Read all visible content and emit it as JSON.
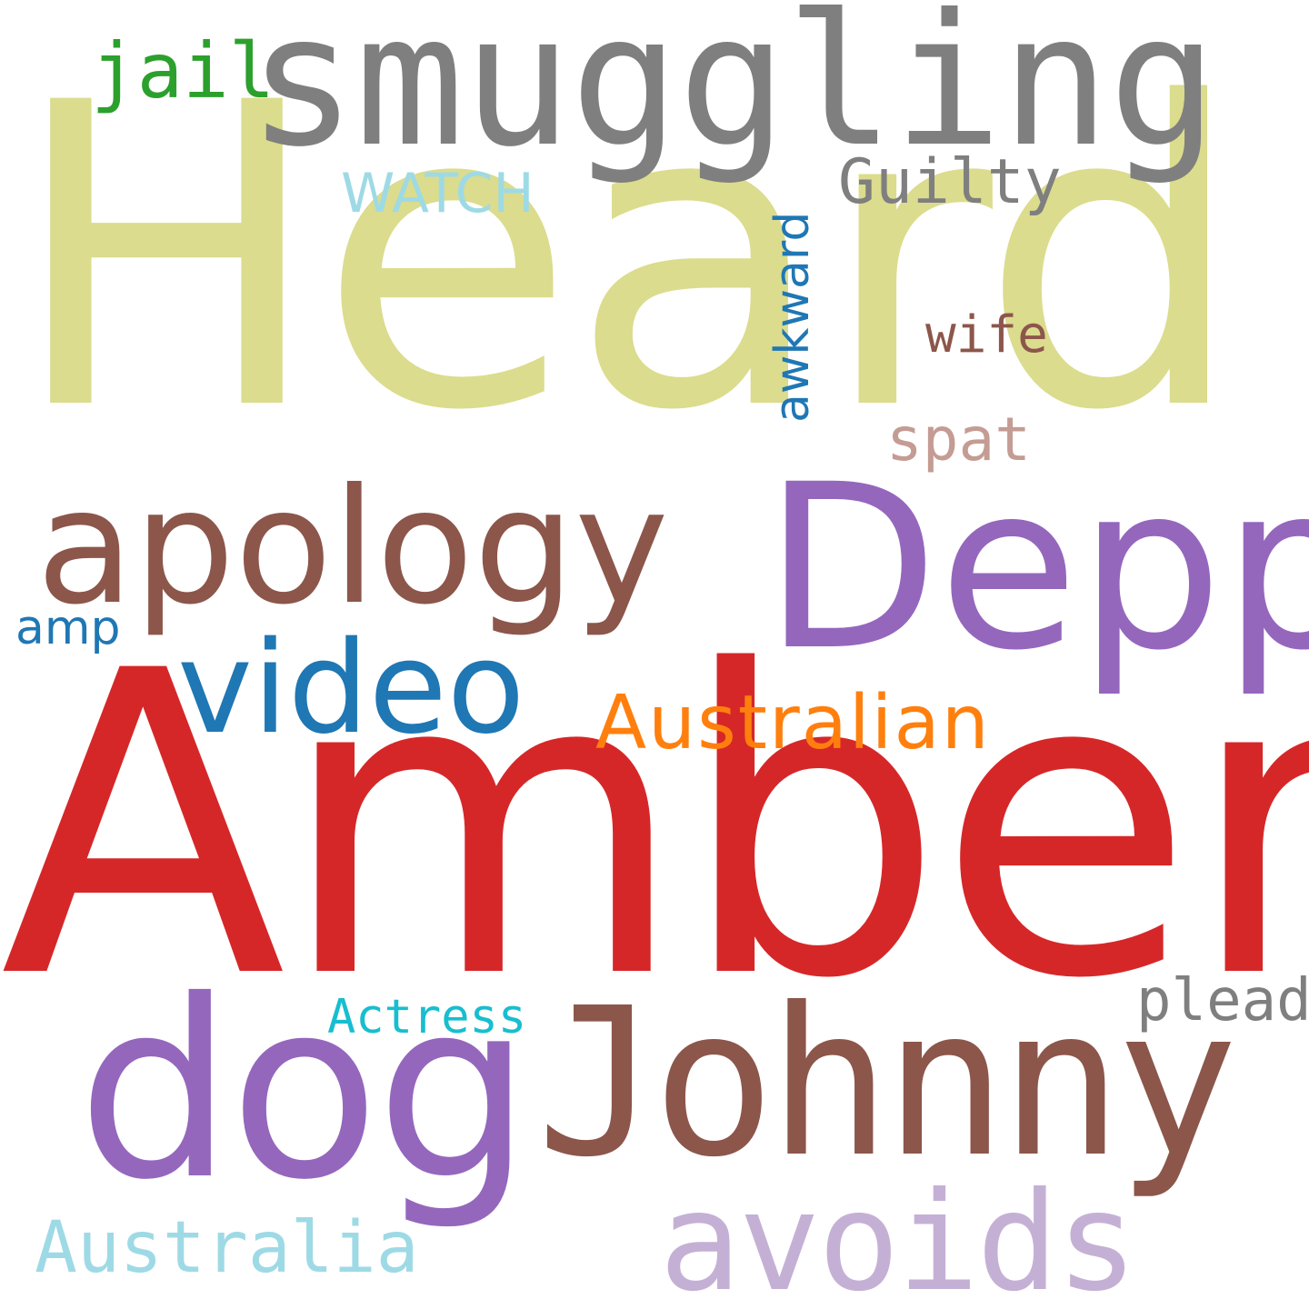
{
  "words": {
    "heard": {
      "text": "Heard",
      "color": "#dbdc8d"
    },
    "amber": {
      "text": "Amber",
      "color": "#d62728"
    },
    "smuggling": {
      "text": "smuggling",
      "color": "#7f7f7f"
    },
    "depp": {
      "text": "Depp",
      "color": "#9467bd"
    },
    "apology": {
      "text": "apology",
      "color": "#8c564b"
    },
    "johnny": {
      "text": "Johnny",
      "color": "#8c564b"
    },
    "dog": {
      "text": "dog",
      "color": "#9467bd"
    },
    "video": {
      "text": "video",
      "color": "#1f77b4"
    },
    "avoids": {
      "text": "avoids",
      "color": "#c5b0d5"
    },
    "australian": {
      "text": "Australian",
      "color": "#ff7f0e"
    },
    "australia": {
      "text": "Australia",
      "color": "#9edae5"
    },
    "jail": {
      "text": "jail",
      "color": "#2ca02c"
    },
    "guilty": {
      "text": "Guilty",
      "color": "#7f7f7f"
    },
    "watch": {
      "text": "WATCH",
      "color": "#9edae5"
    },
    "awkward": {
      "text": "awkward",
      "color": "#1f77b4"
    },
    "wife": {
      "text": "wife",
      "color": "#8c564b"
    },
    "spat": {
      "text": "spat",
      "color": "#c49c94"
    },
    "amp": {
      "text": "amp",
      "color": "#1f77b4"
    },
    "actress": {
      "text": "Actress",
      "color": "#17becf"
    },
    "plead": {
      "text": "plead",
      "color": "#7f7f7f"
    }
  }
}
